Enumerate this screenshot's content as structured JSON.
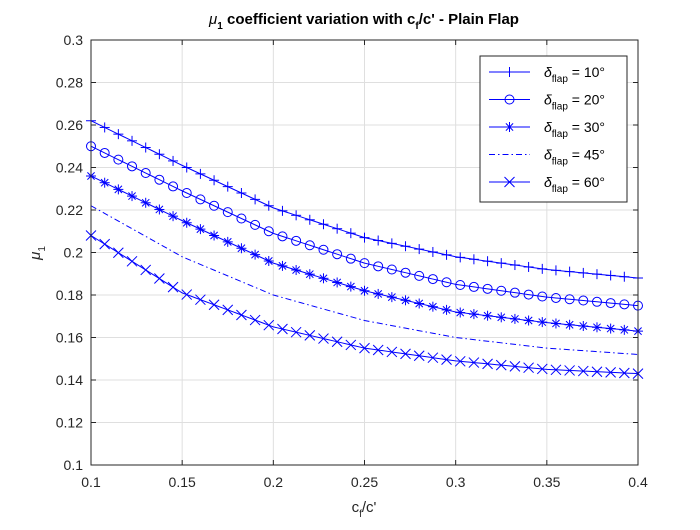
{
  "chart_data": {
    "type": "line",
    "title": {
      "symbol": "μ",
      "subscript": "1",
      "text_before": " coefficient variation with c",
      "text_sub": "f",
      "text_after": "/c' - Plain Flap"
    },
    "xlabel": {
      "main": "c",
      "sub": "f",
      "rest": "/c'"
    },
    "ylabel": {
      "symbol": "μ",
      "sub": "1"
    },
    "xlim": [
      0.1,
      0.4
    ],
    "ylim": [
      0.1,
      0.3
    ],
    "x_ticks": [
      "0.1",
      "0.15",
      "0.2",
      "0.25",
      "0.3",
      "0.35",
      "0.4"
    ],
    "y_ticks": [
      "0.1",
      "0.12",
      "0.14",
      "0.16",
      "0.18",
      "0.2",
      "0.22",
      "0.24",
      "0.26",
      "0.28",
      "0.3"
    ],
    "grid": true,
    "legend_position": "top-right",
    "line_color": "#0000ff",
    "legend_label_prefix": "δ",
    "legend_label_sub": "flap",
    "series": [
      {
        "name": "= 10°",
        "marker": "plus",
        "linestyle": "solid",
        "x": [
          0.1,
          0.15,
          0.2,
          0.25,
          0.3,
          0.35,
          0.4
        ],
        "y": [
          0.262,
          0.241,
          0.221,
          0.207,
          0.198,
          0.192,
          0.188
        ]
      },
      {
        "name": "= 20°",
        "marker": "circle",
        "linestyle": "solid",
        "x": [
          0.1,
          0.15,
          0.2,
          0.25,
          0.3,
          0.35,
          0.4
        ],
        "y": [
          0.25,
          0.229,
          0.209,
          0.195,
          0.185,
          0.179,
          0.175
        ]
      },
      {
        "name": "= 30°",
        "marker": "asterisk",
        "linestyle": "solid",
        "x": [
          0.1,
          0.15,
          0.2,
          0.25,
          0.3,
          0.35,
          0.4
        ],
        "y": [
          0.236,
          0.215,
          0.195,
          0.182,
          0.172,
          0.167,
          0.163
        ]
      },
      {
        "name": "= 45°",
        "marker": "none",
        "linestyle": "dashdot",
        "x": [
          0.1,
          0.15,
          0.2,
          0.25,
          0.3,
          0.35,
          0.4
        ],
        "y": [
          0.222,
          0.198,
          0.18,
          0.168,
          0.16,
          0.155,
          0.152
        ]
      },
      {
        "name": "= 60°",
        "marker": "x",
        "linestyle": "solid",
        "x": [
          0.1,
          0.15,
          0.2,
          0.25,
          0.3,
          0.35,
          0.4
        ],
        "y": [
          0.208,
          0.181,
          0.165,
          0.155,
          0.149,
          0.145,
          0.143
        ]
      }
    ]
  }
}
